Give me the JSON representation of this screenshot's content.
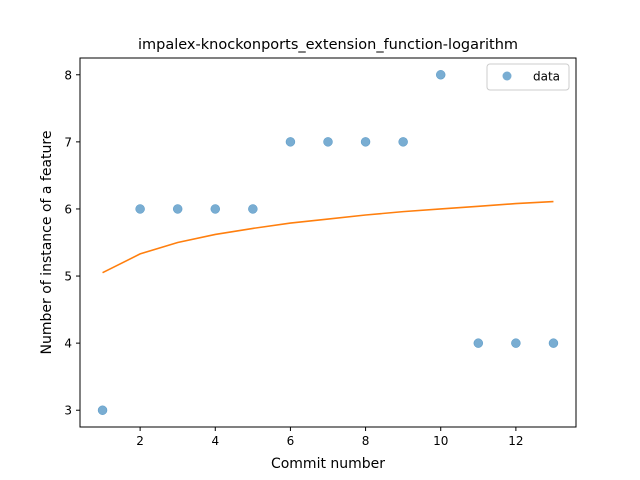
{
  "chart_data": {
    "type": "scatter",
    "title": "impalex-knockonports_extension_function-logarithm",
    "xlabel": "Commit number",
    "ylabel": "Number of instance of a feature",
    "xlim": [
      0.4,
      13.6
    ],
    "ylim": [
      2.75,
      8.25
    ],
    "xticks": [
      2,
      4,
      6,
      8,
      10,
      12
    ],
    "yticks": [
      3,
      4,
      5,
      6,
      7,
      8
    ],
    "grid": false,
    "legend": {
      "position": "top-right",
      "entries": [
        "data"
      ]
    },
    "series": [
      {
        "name": "data",
        "kind": "scatter",
        "color": "#1f77b4",
        "x": [
          1,
          2,
          3,
          4,
          5,
          6,
          7,
          8,
          9,
          10,
          11,
          12,
          13
        ],
        "y": [
          3,
          6,
          6,
          6,
          6,
          7,
          7,
          7,
          7,
          8,
          4,
          4,
          4
        ]
      },
      {
        "kind": "line",
        "color": "#ff7f0e",
        "x": [
          1,
          2,
          3,
          4,
          5,
          6,
          7,
          8,
          9,
          10,
          11,
          12,
          13
        ],
        "y": [
          5.05,
          5.33,
          5.5,
          5.62,
          5.71,
          5.79,
          5.85,
          5.91,
          5.96,
          6.0,
          6.04,
          6.08,
          6.11
        ]
      }
    ]
  }
}
